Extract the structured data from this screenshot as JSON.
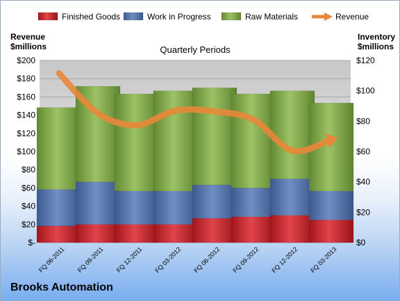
{
  "company": "Brooks Automation",
  "left_axis_title": [
    "Revenue",
    "$millions"
  ],
  "right_axis_title": [
    "Inventory",
    "$millions"
  ],
  "chart_data": {
    "type": "bar",
    "stacked": true,
    "title": "Quarterly Periods",
    "categories": [
      "FQ 06-2011",
      "FQ 09-2011",
      "FQ 12-2011",
      "FQ 03-2012",
      "FQ 06-2012",
      "FQ 09-2012",
      "FQ 12-2012",
      "FQ 03-2013"
    ],
    "series": [
      {
        "name": "Finished Goods",
        "type": "bar",
        "axis": "right",
        "color": "#c0272d",
        "values": [
          11,
          12,
          12,
          12,
          16,
          17,
          18,
          15
        ]
      },
      {
        "name": "Work in Progress",
        "type": "bar",
        "axis": "right",
        "color": "#4f6fa8",
        "values": [
          24,
          28,
          22,
          22,
          22,
          19,
          24,
          19
        ]
      },
      {
        "name": "Raw Materials",
        "type": "bar",
        "axis": "right",
        "color": "#7fa64a",
        "values": [
          54,
          63,
          64,
          66,
          64,
          62,
          58,
          58
        ]
      },
      {
        "name": "Revenue",
        "type": "line",
        "axis": "left",
        "color": "#e8873a",
        "values": [
          186,
          142,
          129,
          145,
          144,
          135,
          101,
          113
        ]
      }
    ],
    "left_axis": {
      "min": 0,
      "max": 200,
      "step": 20,
      "ticks": [
        "$-",
        "$20",
        "$40",
        "$60",
        "$80",
        "$100",
        "$120",
        "$140",
        "$160",
        "$180",
        "$200"
      ]
    },
    "right_axis": {
      "min": 0,
      "max": 120,
      "step": 20,
      "ticks": [
        "$0",
        "$20",
        "$40",
        "$60",
        "$80",
        "$100",
        "$120"
      ]
    },
    "legend_position": "top",
    "grid": true
  }
}
